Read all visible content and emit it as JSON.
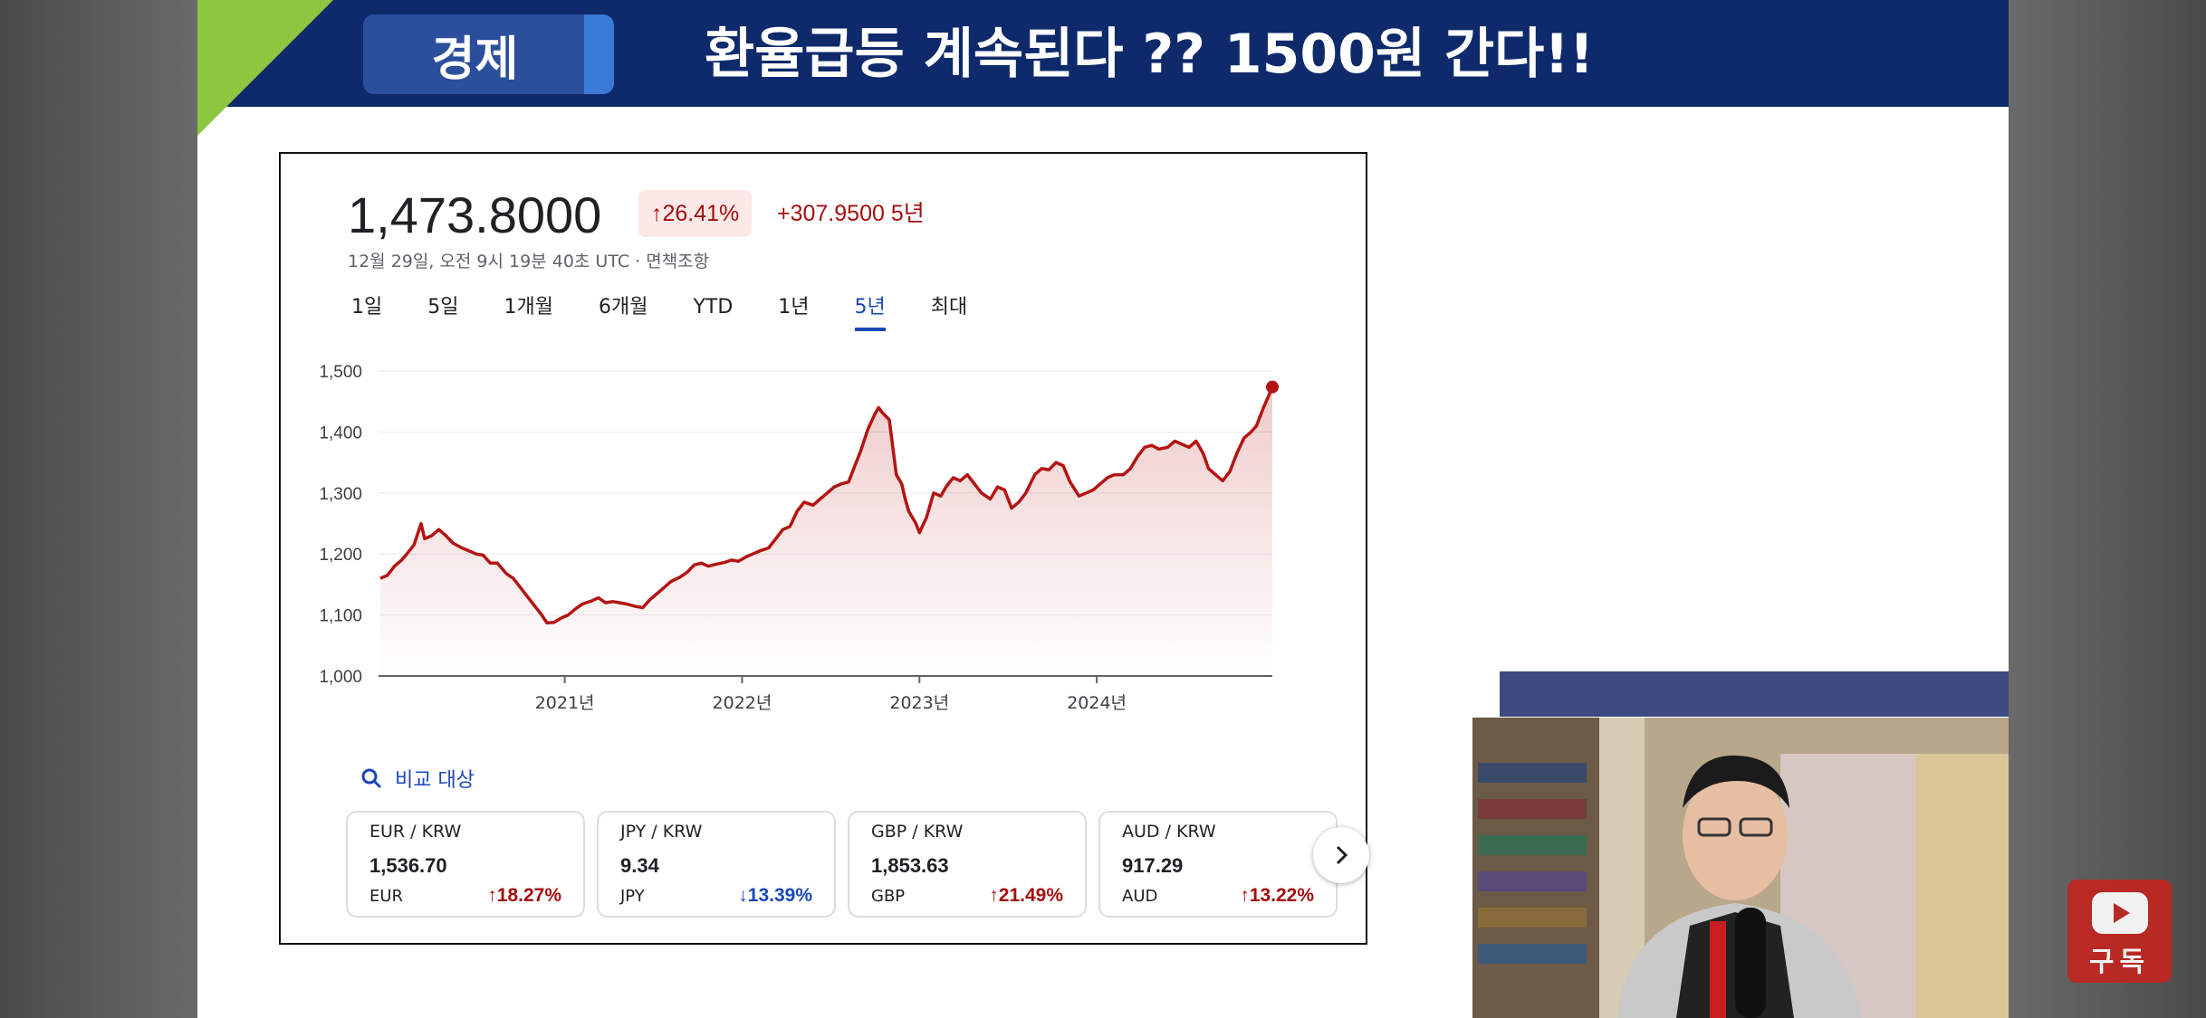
{
  "header": {
    "tag": "경제",
    "headline": "환율급등 계속된다 ?? 1500원 간다!!"
  },
  "quote": {
    "price": "1,473.8000",
    "percent_change": "26.41%",
    "absolute_change": "+307.9500 5년",
    "timestamp": "12월 29일, 오전 9시 19분 40초 UTC · 면책조항"
  },
  "tabs": [
    "1일",
    "5일",
    "1개월",
    "6개월",
    "YTD",
    "1년",
    "5년",
    "최대"
  ],
  "active_tab": "5년",
  "compare_label": "비교 대상",
  "cards": [
    {
      "pair": "EUR / KRW",
      "value": "1,536.70",
      "currency": "EUR",
      "change": "18.27%",
      "direction": "up"
    },
    {
      "pair": "JPY / KRW",
      "value": "9.34",
      "currency": "JPY",
      "change": "13.39%",
      "direction": "down"
    },
    {
      "pair": "GBP / KRW",
      "value": "1,853.63",
      "currency": "GBP",
      "change": "21.49%",
      "direction": "up"
    },
    {
      "pair": "AUD / KRW",
      "value": "917.29",
      "currency": "AUD",
      "change": "13.22%",
      "direction": "up"
    }
  ],
  "subscribe": {
    "label": "구독"
  },
  "colors": {
    "header_bg": "#0e2a6b",
    "accent_green": "#8cc63f",
    "line": "#b31412",
    "up": "#a50e0e",
    "down": "#1a47b8",
    "active_tab": "#1a47b8"
  },
  "chart_data": {
    "type": "area",
    "title": "",
    "xlabel": "",
    "ylabel": "",
    "ylim": [
      1000,
      1500
    ],
    "xlim": [
      2019.95,
      2024.99
    ],
    "yticks": [
      "1,000",
      "1,100",
      "1,200",
      "1,300",
      "1,400",
      "1,500"
    ],
    "xticks": [
      {
        "x": 2021.0,
        "label": "2021년"
      },
      {
        "x": 2022.0,
        "label": "2022년"
      },
      {
        "x": 2023.0,
        "label": "2023년"
      },
      {
        "x": 2024.0,
        "label": "2024년"
      }
    ],
    "grid": true,
    "series": [
      {
        "points": [
          [
            2019.96,
            1160
          ],
          [
            2020.0,
            1165
          ],
          [
            2020.04,
            1180
          ],
          [
            2020.08,
            1190
          ],
          [
            2020.11,
            1200
          ],
          [
            2020.15,
            1215
          ],
          [
            2020.19,
            1250
          ],
          [
            2020.21,
            1225
          ],
          [
            2020.25,
            1230
          ],
          [
            2020.29,
            1240
          ],
          [
            2020.33,
            1230
          ],
          [
            2020.37,
            1218
          ],
          [
            2020.42,
            1210
          ],
          [
            2020.46,
            1205
          ],
          [
            2020.5,
            1200
          ],
          [
            2020.54,
            1198
          ],
          [
            2020.58,
            1185
          ],
          [
            2020.62,
            1185
          ],
          [
            2020.67,
            1168
          ],
          [
            2020.71,
            1160
          ],
          [
            2020.75,
            1145
          ],
          [
            2020.79,
            1130
          ],
          [
            2020.83,
            1115
          ],
          [
            2020.87,
            1100
          ],
          [
            2020.9,
            1087
          ],
          [
            2020.94,
            1088
          ],
          [
            2020.98,
            1095
          ],
          [
            2021.02,
            1100
          ],
          [
            2021.06,
            1110
          ],
          [
            2021.1,
            1118
          ],
          [
            2021.15,
            1123
          ],
          [
            2021.19,
            1128
          ],
          [
            2021.23,
            1120
          ],
          [
            2021.27,
            1122
          ],
          [
            2021.31,
            1120
          ],
          [
            2021.35,
            1118
          ],
          [
            2021.4,
            1114
          ],
          [
            2021.44,
            1112
          ],
          [
            2021.48,
            1125
          ],
          [
            2021.52,
            1135
          ],
          [
            2021.56,
            1145
          ],
          [
            2021.6,
            1155
          ],
          [
            2021.65,
            1162
          ],
          [
            2021.69,
            1170
          ],
          [
            2021.73,
            1182
          ],
          [
            2021.77,
            1185
          ],
          [
            2021.81,
            1180
          ],
          [
            2021.85,
            1183
          ],
          [
            2021.9,
            1186
          ],
          [
            2021.94,
            1190
          ],
          [
            2021.98,
            1188
          ],
          [
            2022.02,
            1195
          ],
          [
            2022.06,
            1200
          ],
          [
            2022.1,
            1205
          ],
          [
            2022.15,
            1210
          ],
          [
            2022.19,
            1225
          ],
          [
            2022.23,
            1240
          ],
          [
            2022.27,
            1245
          ],
          [
            2022.31,
            1270
          ],
          [
            2022.35,
            1285
          ],
          [
            2022.4,
            1280
          ],
          [
            2022.44,
            1290
          ],
          [
            2022.48,
            1300
          ],
          [
            2022.52,
            1310
          ],
          [
            2022.56,
            1315
          ],
          [
            2022.6,
            1318
          ],
          [
            2022.63,
            1340
          ],
          [
            2022.67,
            1370
          ],
          [
            2022.71,
            1405
          ],
          [
            2022.75,
            1430
          ],
          [
            2022.77,
            1440
          ],
          [
            2022.79,
            1432
          ],
          [
            2022.83,
            1420
          ],
          [
            2022.85,
            1375
          ],
          [
            2022.87,
            1330
          ],
          [
            2022.9,
            1315
          ],
          [
            2022.92,
            1290
          ],
          [
            2022.94,
            1270
          ],
          [
            2022.98,
            1250
          ],
          [
            2023.0,
            1235
          ],
          [
            2023.04,
            1260
          ],
          [
            2023.08,
            1300
          ],
          [
            2023.12,
            1295
          ],
          [
            2023.15,
            1310
          ],
          [
            2023.19,
            1325
          ],
          [
            2023.23,
            1320
          ],
          [
            2023.27,
            1330
          ],
          [
            2023.31,
            1315
          ],
          [
            2023.35,
            1300
          ],
          [
            2023.4,
            1290
          ],
          [
            2023.44,
            1310
          ],
          [
            2023.48,
            1305
          ],
          [
            2023.52,
            1275
          ],
          [
            2023.56,
            1285
          ],
          [
            2023.6,
            1300
          ],
          [
            2023.65,
            1330
          ],
          [
            2023.69,
            1340
          ],
          [
            2023.73,
            1338
          ],
          [
            2023.77,
            1350
          ],
          [
            2023.81,
            1345
          ],
          [
            2023.85,
            1318
          ],
          [
            2023.9,
            1295
          ],
          [
            2023.94,
            1300
          ],
          [
            2023.98,
            1305
          ],
          [
            2024.02,
            1315
          ],
          [
            2024.06,
            1325
          ],
          [
            2024.1,
            1330
          ],
          [
            2024.15,
            1330
          ],
          [
            2024.19,
            1340
          ],
          [
            2024.23,
            1360
          ],
          [
            2024.27,
            1375
          ],
          [
            2024.31,
            1378
          ],
          [
            2024.35,
            1372
          ],
          [
            2024.4,
            1375
          ],
          [
            2024.44,
            1385
          ],
          [
            2024.48,
            1380
          ],
          [
            2024.52,
            1375
          ],
          [
            2024.56,
            1385
          ],
          [
            2024.6,
            1365
          ],
          [
            2024.63,
            1340
          ],
          [
            2024.67,
            1330
          ],
          [
            2024.71,
            1320
          ],
          [
            2024.75,
            1335
          ],
          [
            2024.79,
            1365
          ],
          [
            2024.83,
            1390
          ],
          [
            2024.87,
            1400
          ],
          [
            2024.9,
            1410
          ],
          [
            2024.94,
            1440
          ],
          [
            2024.97,
            1460
          ],
          [
            2024.99,
            1473.8
          ]
        ]
      }
    ]
  }
}
